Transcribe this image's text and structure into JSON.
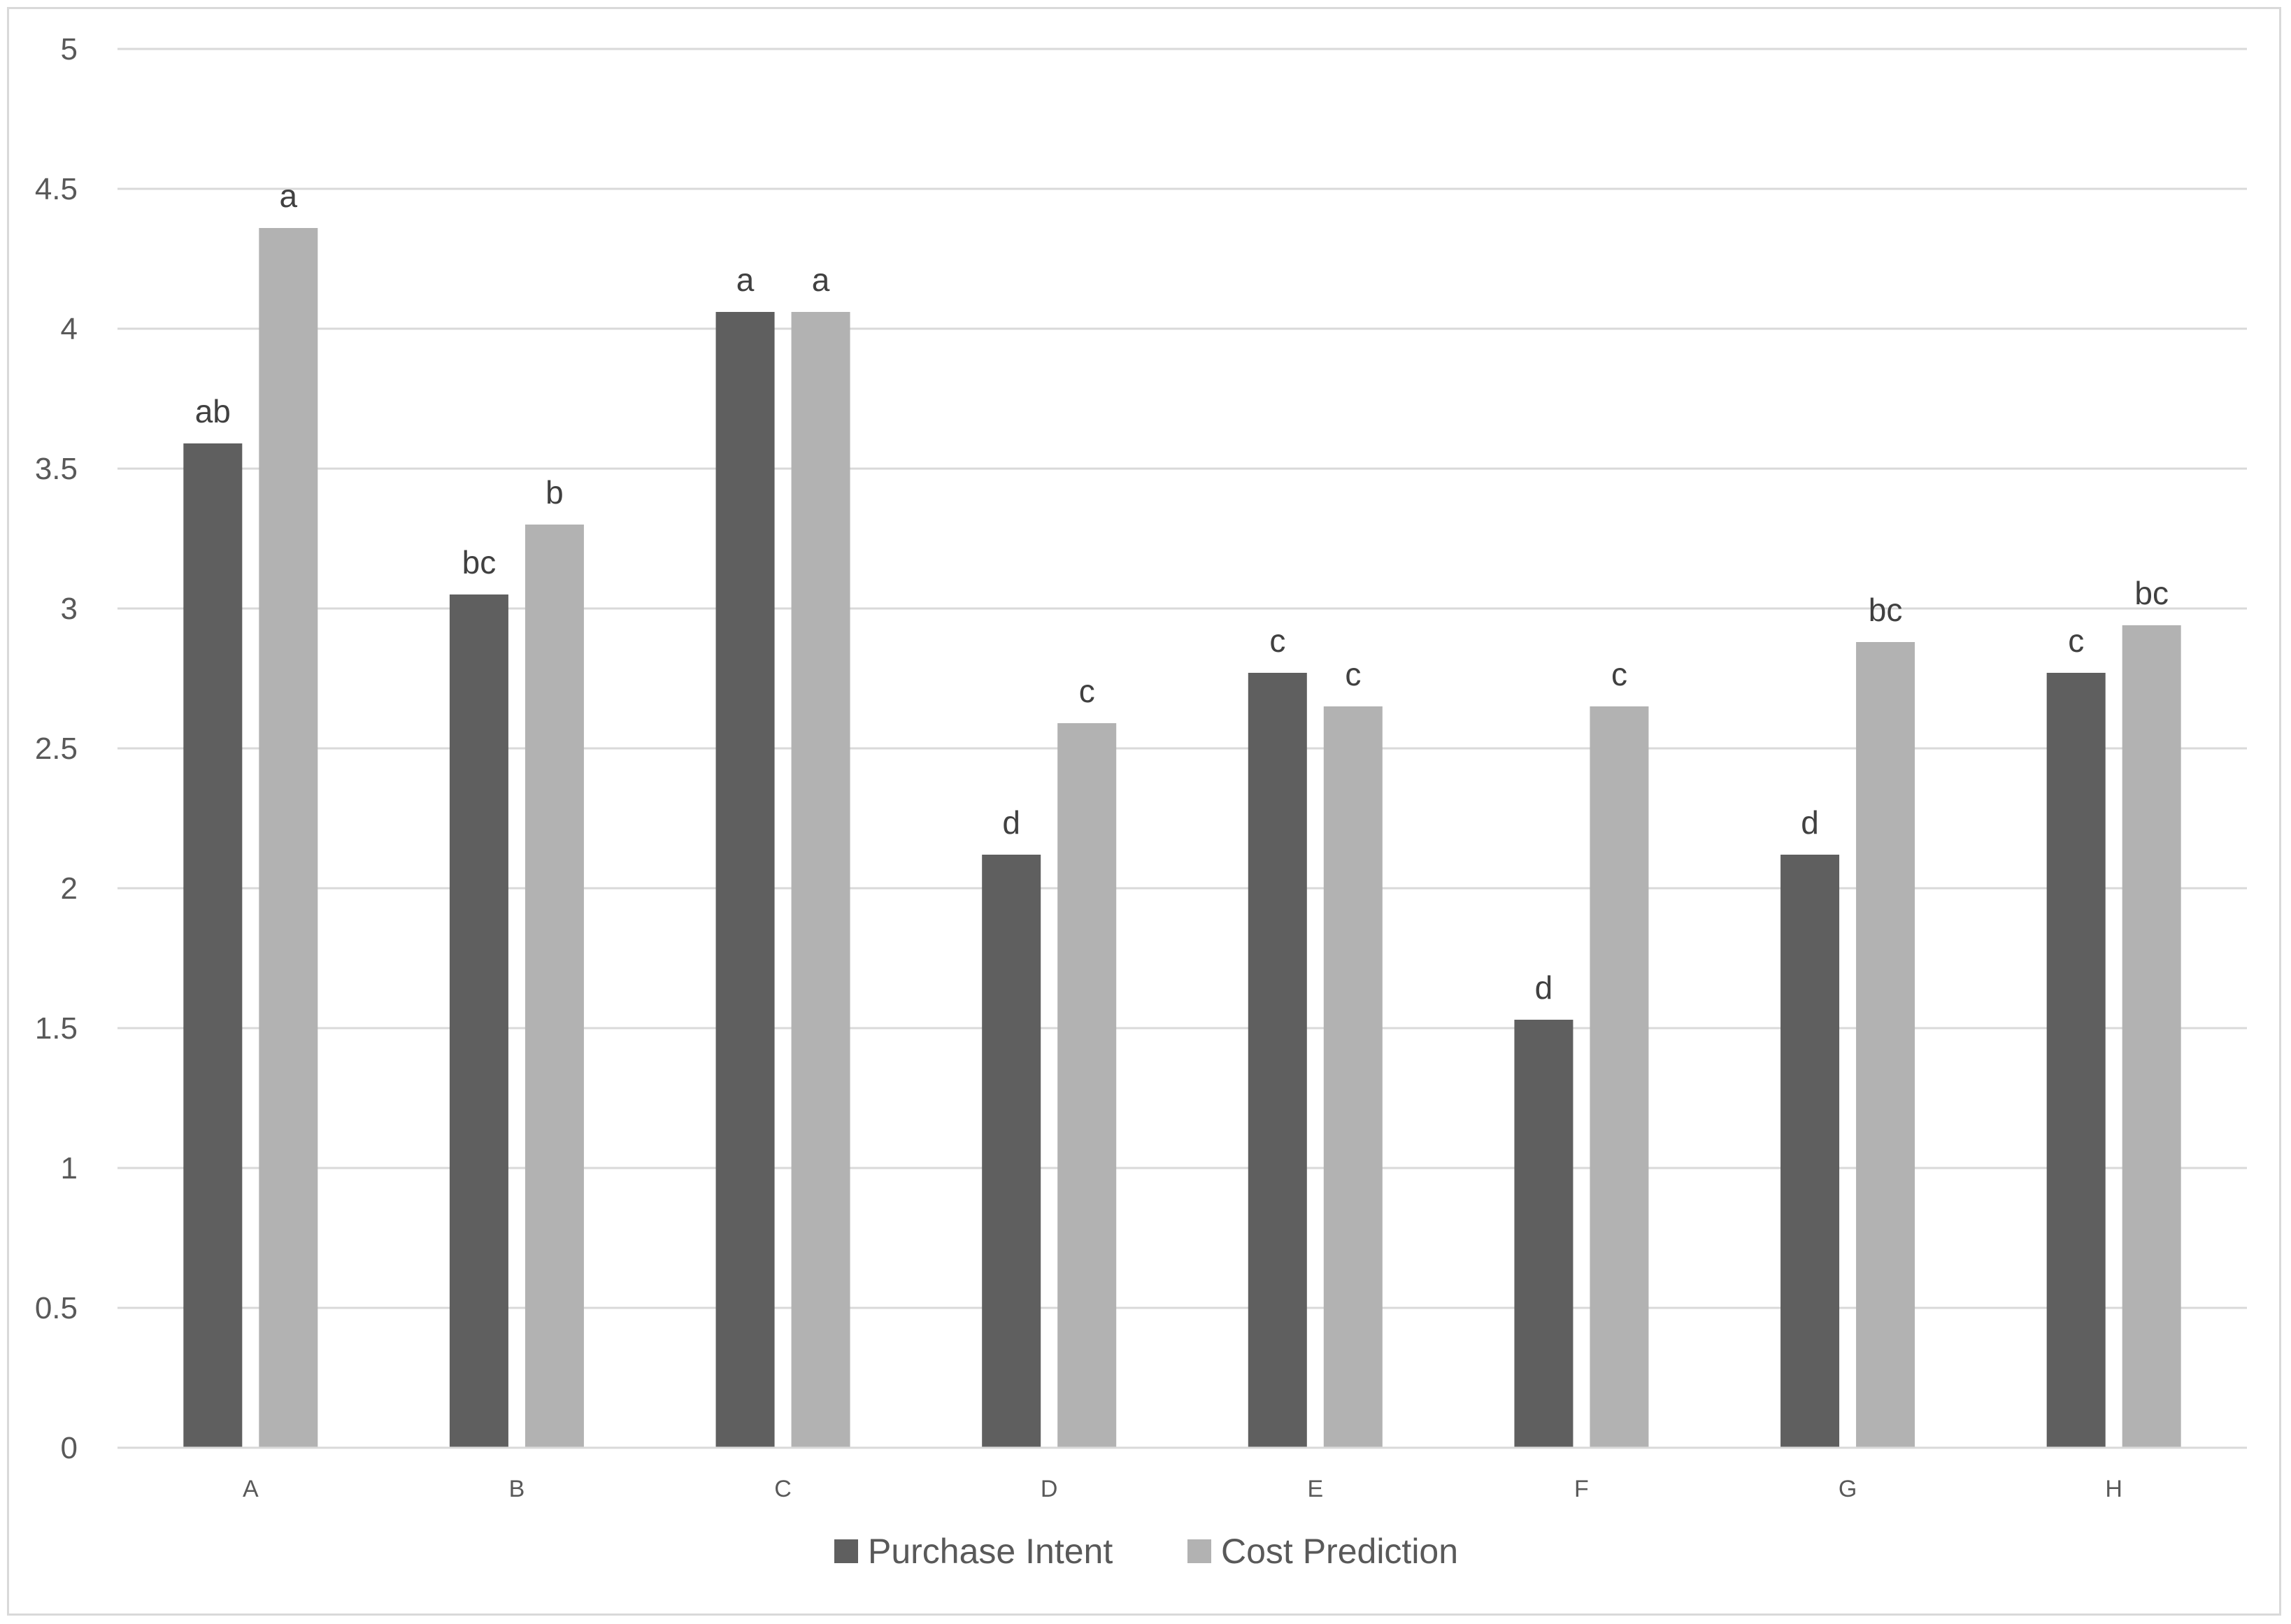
{
  "chart_data": {
    "type": "bar",
    "categories": [
      "A",
      "B",
      "C",
      "D",
      "E",
      "F",
      "G",
      "H"
    ],
    "series": [
      {
        "name": "Purchase Intent",
        "color": "#5f5f5f",
        "values": [
          3.59,
          3.05,
          4.06,
          2.12,
          2.77,
          1.53,
          2.12,
          2.77
        ],
        "labels": [
          "ab",
          "bc",
          "a",
          "d",
          "c",
          "d",
          "d",
          "c"
        ]
      },
      {
        "name": "Cost Prediction",
        "color": "#b2b2b2",
        "values": [
          4.36,
          3.3,
          4.06,
          2.59,
          2.65,
          2.65,
          2.88,
          2.94
        ],
        "labels": [
          "a",
          "b",
          "a",
          "c",
          "c",
          "c",
          "bc",
          "bc"
        ]
      }
    ],
    "ylim": [
      0,
      5
    ],
    "ytick_step": 0.5,
    "yticks": [
      "0",
      "0.5",
      "1",
      "1.5",
      "2",
      "2.5",
      "3",
      "3.5",
      "4",
      "4.5",
      "5"
    ],
    "gridlines": true,
    "gridline_color": "#d9d9d9",
    "legend_position": "bottom",
    "title": "",
    "xlabel": "",
    "ylabel": ""
  }
}
